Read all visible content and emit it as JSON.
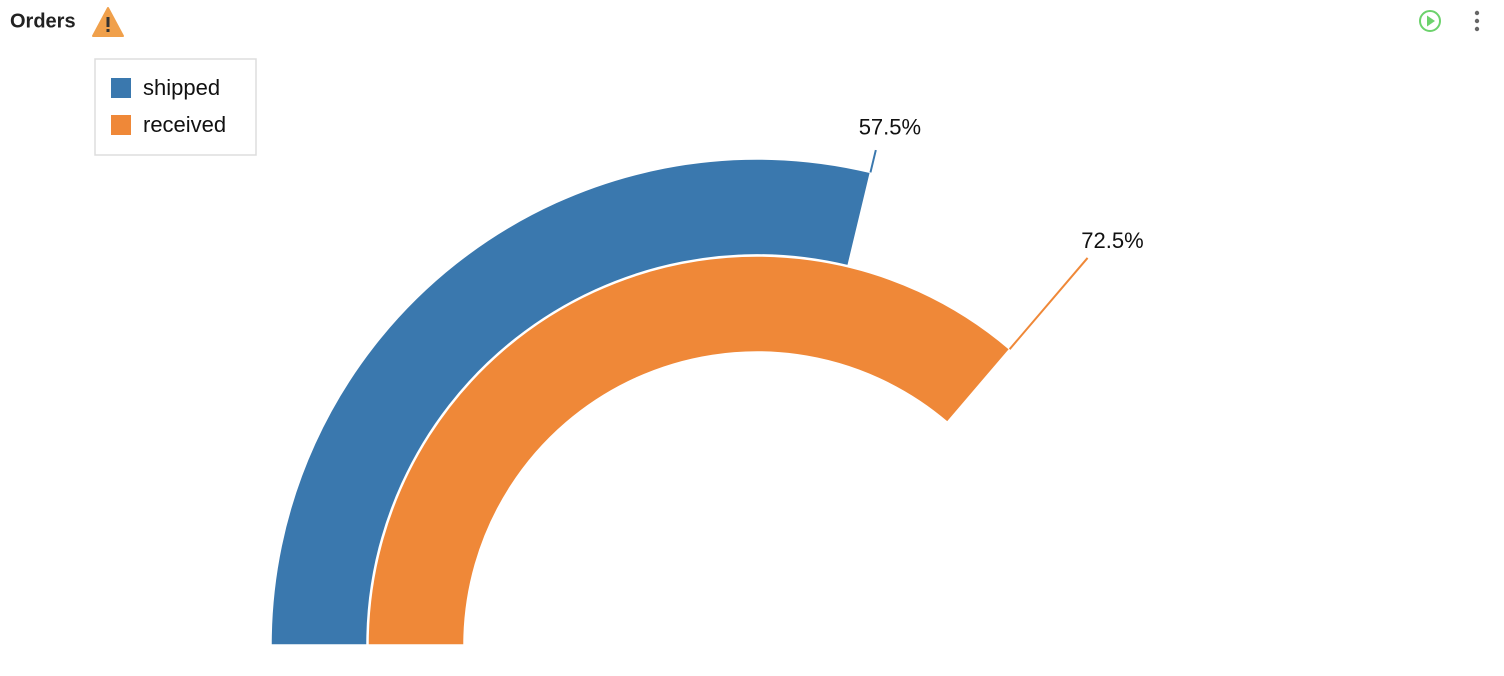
{
  "header": {
    "title": "Orders"
  },
  "chart_data": {
    "type": "radial-bar",
    "series": [
      {
        "name": "shipped",
        "color": "#3a78ae",
        "values": [
          57.5
        ],
        "value_labels": [
          "57.5%"
        ]
      },
      {
        "name": "received",
        "color": "#ef8838",
        "values": [
          72.5
        ],
        "value_labels": [
          "72.5%"
        ]
      }
    ],
    "ylim": [
      0,
      100
    ],
    "legend": "top-left"
  }
}
